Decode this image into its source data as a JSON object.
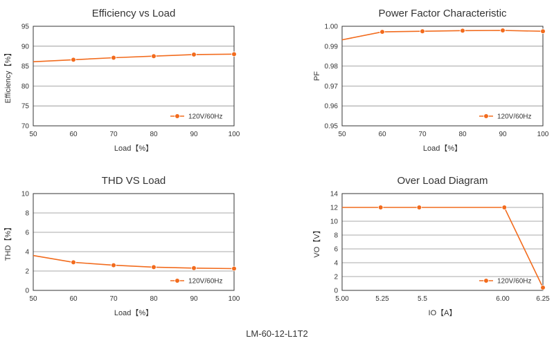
{
  "caption": "LM-60-12-L1T2",
  "colors": {
    "series": "#f26b1d",
    "grid": "#8c8c8c",
    "axis": "#333333"
  },
  "chart_data": [
    {
      "type": "line",
      "title": "Efficiency vs Load",
      "xlabel": "Load【%】",
      "ylabel": "Efficiency【%】",
      "xlim": [
        50,
        100
      ],
      "ylim": [
        70,
        95
      ],
      "xticks": [
        50,
        60,
        70,
        80,
        90,
        100
      ],
      "yticks": [
        70,
        75,
        80,
        85,
        90,
        95
      ],
      "xtick_labels": [
        "50",
        "60",
        "70",
        "80",
        "90",
        "100"
      ],
      "ytick_labels": [
        "70",
        "75",
        "80",
        "85",
        "90",
        "95"
      ],
      "grid": "horizontal",
      "legend": "bottom-right",
      "series": [
        {
          "name": "120V/60Hz",
          "line": {
            "x": [
              50,
              60,
              70,
              80,
              90,
              100
            ],
            "y": [
              86.1,
              86.6,
              87.1,
              87.5,
              87.9,
              88.0
            ]
          },
          "markers": {
            "x": [
              60,
              70,
              80,
              90,
              100
            ],
            "y": [
              86.6,
              87.1,
              87.5,
              87.9,
              88.0
            ]
          }
        }
      ]
    },
    {
      "type": "line",
      "title": "Power Factor Characteristic",
      "xlabel": "Load【%】",
      "ylabel": "PF",
      "xlim": [
        50,
        100
      ],
      "ylim": [
        0.95,
        1.0
      ],
      "xticks": [
        50,
        60,
        70,
        80,
        90,
        100
      ],
      "yticks": [
        0.95,
        0.96,
        0.97,
        0.98,
        0.99,
        1.0
      ],
      "xtick_labels": [
        "50",
        "60",
        "70",
        "80",
        "90",
        "100"
      ],
      "ytick_labels": [
        "0.95",
        "0.96",
        "0.97",
        "0.98",
        "0.99",
        "1.00"
      ],
      "grid": "horizontal",
      "legend": "bottom-right",
      "series": [
        {
          "name": "120V/60Hz",
          "line": {
            "x": [
              50,
              60,
              70,
              80,
              90,
              100
            ],
            "y": [
              0.9932,
              0.9972,
              0.9975,
              0.9978,
              0.9979,
              0.9975
            ]
          },
          "markers": {
            "x": [
              60,
              70,
              80,
              90,
              100
            ],
            "y": [
              0.9972,
              0.9975,
              0.9978,
              0.9979,
              0.9975
            ]
          }
        }
      ]
    },
    {
      "type": "line",
      "title": "THD VS Load",
      "xlabel": "Load【%】",
      "ylabel": "THD【%】",
      "xlim": [
        50,
        100
      ],
      "ylim": [
        0,
        10
      ],
      "xticks": [
        50,
        60,
        70,
        80,
        90,
        100
      ],
      "yticks": [
        0,
        2,
        4,
        6,
        8,
        10
      ],
      "xtick_labels": [
        "50",
        "60",
        "70",
        "80",
        "90",
        "100"
      ],
      "ytick_labels": [
        "0",
        "2",
        "4",
        "6",
        "8",
        "10"
      ],
      "grid": "horizontal",
      "legend": "bottom-right",
      "series": [
        {
          "name": "120V/60Hz",
          "line": {
            "x": [
              50,
              60,
              70,
              80,
              90,
              100
            ],
            "y": [
              3.6,
              2.9,
              2.6,
              2.4,
              2.3,
              2.25
            ]
          },
          "markers": {
            "x": [
              60,
              70,
              80,
              90,
              100
            ],
            "y": [
              2.9,
              2.6,
              2.4,
              2.3,
              2.25
            ]
          }
        }
      ]
    },
    {
      "type": "line",
      "title": "Over Load Diagram",
      "xlabel": "IO【A】",
      "ylabel": "VO【V】",
      "xlim": [
        5.0,
        6.25
      ],
      "ylim": [
        0,
        14
      ],
      "xticks": [
        5.0,
        5.25,
        5.5,
        5.75,
        6.0,
        6.25
      ],
      "yticks": [
        0,
        2,
        4,
        6,
        8,
        10,
        12,
        14
      ],
      "xtick_labels": [
        "5.00",
        "5.25",
        "5.5",
        "",
        "6.00",
        "6.25"
      ],
      "ytick_labels": [
        "0",
        "2",
        "4",
        "6",
        "8",
        "10",
        "12",
        "14"
      ],
      "grid": "horizontal",
      "legend": "bottom-right",
      "series": [
        {
          "name": "120V/60Hz",
          "line": {
            "x": [
              5.0,
              5.24,
              5.48,
              6.01,
              6.25
            ],
            "y": [
              12,
              12,
              12,
              12,
              0.4
            ]
          },
          "markers": {
            "x": [
              5.24,
              5.48,
              6.01,
              6.25
            ],
            "y": [
              12,
              12,
              12,
              0.4
            ]
          }
        }
      ]
    }
  ]
}
